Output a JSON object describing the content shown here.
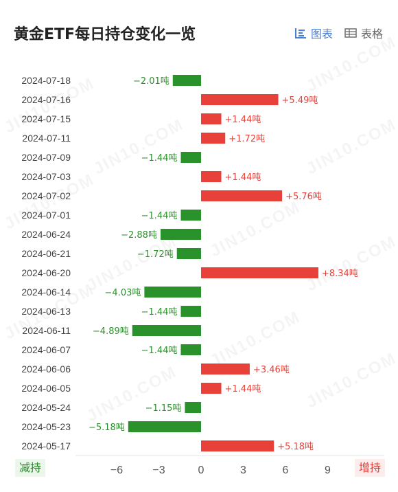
{
  "header": {
    "title": "黄金ETF每日持仓变化一览",
    "chart_toggle_label": "图表",
    "table_toggle_label": "表格"
  },
  "legend": {
    "decrease_label": "减持",
    "increase_label": "增持"
  },
  "colors": {
    "increase": "#e8413a",
    "decrease": "#2a922a",
    "accent": "#4a7fd6"
  },
  "watermark": "JIN10.COM",
  "chart_data": {
    "type": "bar",
    "orientation": "horizontal",
    "unit": "吨",
    "categories": [
      "2024-07-18",
      "2024-07-16",
      "2024-07-15",
      "2024-07-11",
      "2024-07-09",
      "2024-07-03",
      "2024-07-02",
      "2024-07-01",
      "2024-06-24",
      "2024-06-21",
      "2024-06-20",
      "2024-06-14",
      "2024-06-13",
      "2024-06-11",
      "2024-06-07",
      "2024-06-06",
      "2024-06-05",
      "2024-05-24",
      "2024-05-23",
      "2024-05-17"
    ],
    "values": [
      -2.01,
      5.49,
      1.44,
      1.72,
      -1.44,
      1.44,
      5.76,
      -1.44,
      -2.88,
      -1.72,
      8.34,
      -4.03,
      -1.44,
      -4.89,
      -1.44,
      3.46,
      1.44,
      -1.15,
      -5.18,
      5.18
    ],
    "labels": [
      "−2.01吨",
      "+5.49吨",
      "+1.44吨",
      "+1.72吨",
      "−1.44吨",
      "+1.44吨",
      "+5.76吨",
      "−1.44吨",
      "−2.88吨",
      "−1.72吨",
      "+8.34吨",
      "−4.03吨",
      "−1.44吨",
      "−4.89吨",
      "−1.44吨",
      "+3.46吨",
      "+1.44吨",
      "−1.15吨",
      "−5.18吨",
      "+5.18吨"
    ],
    "xlim": [
      -9.5,
      9.5
    ],
    "xticks": [
      -6,
      -3,
      0,
      3,
      6,
      9
    ],
    "xtick_labels": [
      "−6",
      "−3",
      "0",
      "3",
      "6",
      "9"
    ],
    "grid": false
  }
}
